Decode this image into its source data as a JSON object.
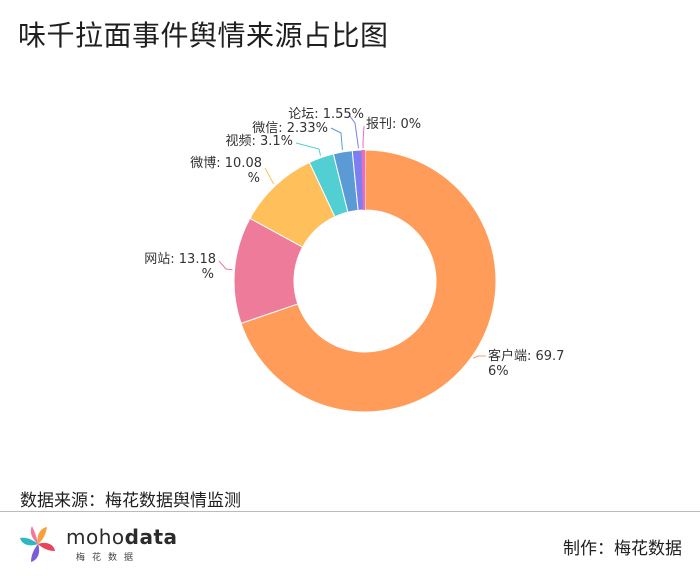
{
  "title": "味千拉面事件舆情来源占比图",
  "source_text": "数据来源：梅花数据舆情监测",
  "credit_text": "制作：梅花数据",
  "logo": {
    "text_plain": "moho",
    "text_bold": "data",
    "subtext": "梅花数据"
  },
  "colors": {
    "客户端": "#ff9c59",
    "网站": "#ee7b99",
    "微博": "#ffbf5a",
    "视频": "#52cfd2",
    "微信": "#5b9bd5",
    "论坛": "#7b7ff0",
    "报刊": "#f06bc0"
  },
  "chart_data": {
    "type": "pie",
    "variant": "donut",
    "title": "味千拉面事件舆情来源占比图",
    "unit": "%",
    "slices": [
      {
        "name": "客户端",
        "value": 69.76,
        "label_lines": [
          "客户端: 69.7",
          "6%"
        ]
      },
      {
        "name": "网站",
        "value": 13.18,
        "label_lines": [
          "网站: 13.18",
          "%"
        ]
      },
      {
        "name": "微博",
        "value": 10.08,
        "label_lines": [
          "微博: 10.08",
          "%"
        ]
      },
      {
        "name": "视频",
        "value": 3.1,
        "label_lines": [
          "视频: 3.1%"
        ]
      },
      {
        "name": "微信",
        "value": 2.33,
        "label_lines": [
          "微信: 2.33%"
        ]
      },
      {
        "name": "论坛",
        "value": 1.55,
        "label_lines": [
          "论坛: 1.55%"
        ]
      },
      {
        "name": "报刊",
        "value": 0,
        "label_lines": [
          "报刊: 0%"
        ]
      }
    ]
  }
}
